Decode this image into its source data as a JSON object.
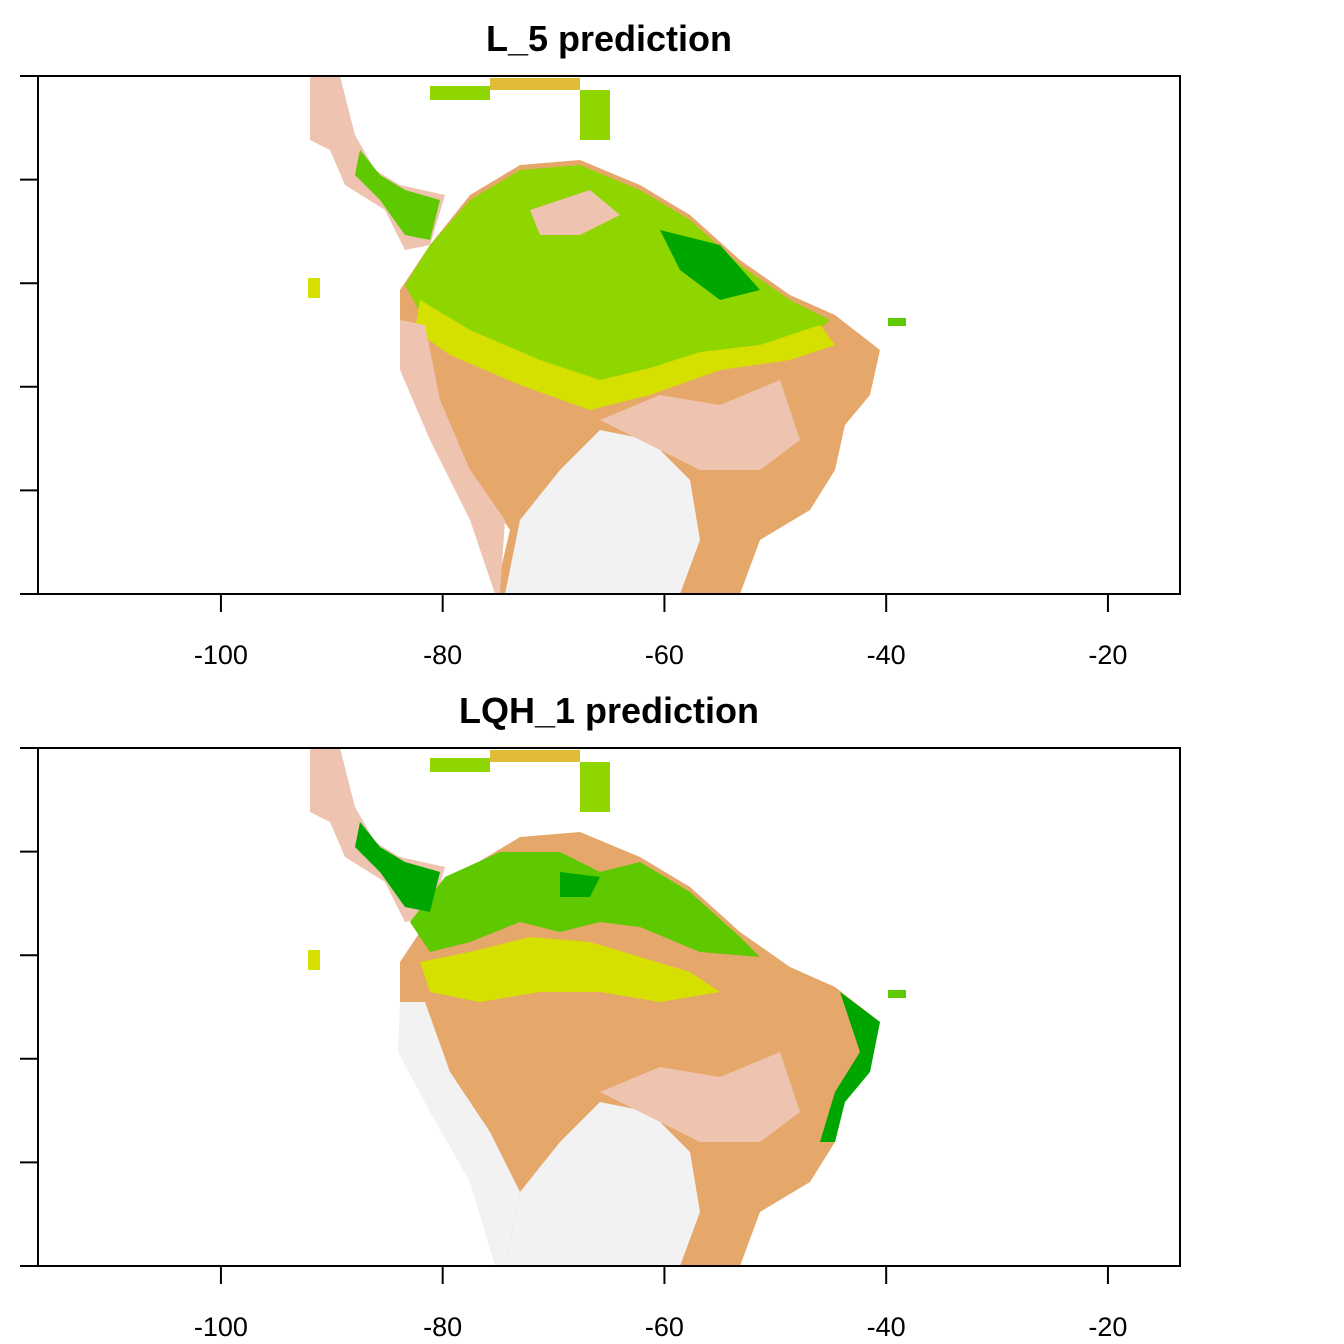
{
  "colors": {
    "background": "#ffffff",
    "axis": "#000000",
    "palette_low_to_high": [
      "#f2f2f2",
      "#eec4b0",
      "#e6a76a",
      "#e0bb36",
      "#d6e000",
      "#8fd500",
      "#5ec800",
      "#00a600"
    ]
  },
  "chart_data": [
    {
      "type": "heatmap",
      "title": "L_5 prediction",
      "xlabel": "",
      "ylabel": "",
      "xlim": [
        -116.5,
        -13.5
      ],
      "x_ticks": [
        -100,
        -80,
        -60,
        -40,
        -20
      ],
      "x_tick_labels": [
        "-100",
        "-80",
        "-60",
        "-40",
        "-20"
      ],
      "y_tick_count": 6,
      "y_tick_labels": [],
      "grid": false,
      "legend": "none",
      "description_of_values": "raster of predicted suitability over Central and South America"
    },
    {
      "type": "heatmap",
      "title": "LQH_1 prediction",
      "xlabel": "",
      "ylabel": "",
      "xlim": [
        -116.5,
        -13.5
      ],
      "x_ticks": [
        -100,
        -80,
        -60,
        -40,
        -20
      ],
      "x_tick_labels": [
        "-100",
        "-80",
        "-60",
        "-40",
        "-20"
      ],
      "y_tick_count": 6,
      "y_tick_labels": [],
      "grid": false,
      "legend": "none",
      "description_of_values": "raster of predicted suitability over Central and South America"
    }
  ]
}
